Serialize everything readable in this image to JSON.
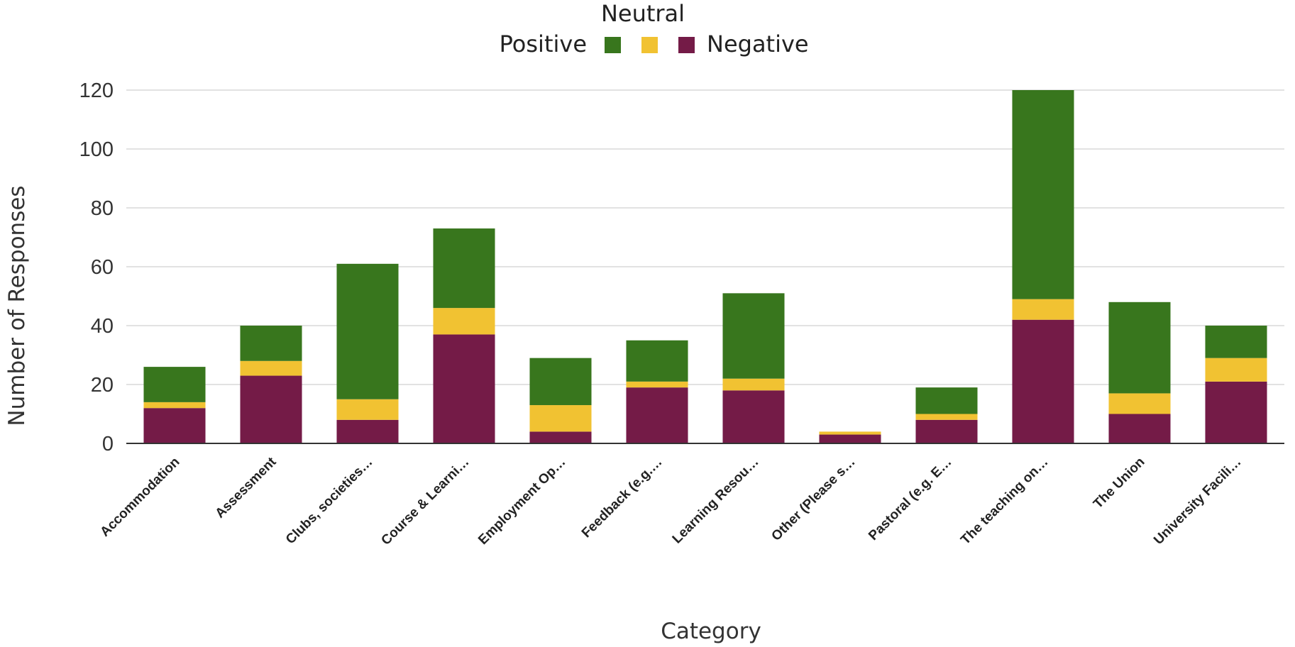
{
  "chart_data": {
    "type": "bar",
    "stacked": true,
    "title": "",
    "xlabel": "Category",
    "ylabel": "Number of Responses",
    "ylim": [
      0,
      120
    ],
    "yticks": [
      0,
      20,
      40,
      60,
      80,
      100,
      120
    ],
    "grid": true,
    "legend_position": "top",
    "categories": [
      "Accommodation",
      "Assessment",
      "Clubs, societies…",
      "Course & Learni…",
      "Employment Op…",
      "Feedback (e.g.…",
      "Learning Resou…",
      "Other (Please s…",
      "Pastoral (e.g. E…",
      "The teaching on…",
      "The Union",
      "University Facili…"
    ],
    "series": [
      {
        "name": "Negative",
        "color": "#741b47",
        "values": [
          12,
          23,
          8,
          37,
          4,
          19,
          18,
          3,
          8,
          42,
          10,
          21
        ]
      },
      {
        "name": "Neutral",
        "color": "#f1c232",
        "values": [
          2,
          5,
          7,
          9,
          9,
          2,
          4,
          1,
          2,
          7,
          7,
          8
        ]
      },
      {
        "name": "Positive",
        "color": "#38761d",
        "values": [
          12,
          12,
          46,
          27,
          16,
          14,
          29,
          0,
          9,
          71,
          31,
          11
        ]
      }
    ]
  }
}
